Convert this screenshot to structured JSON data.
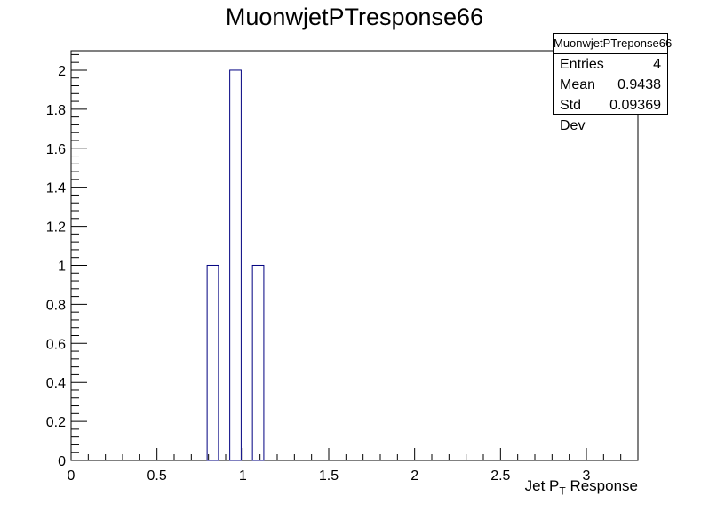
{
  "chart_data": {
    "type": "bar",
    "title": "MuonwjetPTresponse66",
    "xlabel": "Jet P",
    "xlabel_sub": "T",
    "xlabel_suffix": " Response",
    "ylabel": "",
    "xlim": [
      0,
      3.3
    ],
    "ylim": [
      0,
      2.1
    ],
    "bins": [
      {
        "x_low": 0.792,
        "x_high": 0.858,
        "value": 1
      },
      {
        "x_low": 0.924,
        "x_high": 0.99,
        "value": 2
      },
      {
        "x_low": 1.056,
        "x_high": 1.122,
        "value": 1
      }
    ],
    "x_tick_labels": [
      "0",
      "0.5",
      "1",
      "1.5",
      "2",
      "2.5",
      "3"
    ],
    "y_tick_labels": [
      "0",
      "0.2",
      "0.4",
      "0.6",
      "0.8",
      "1",
      "1.2",
      "1.4",
      "1.6",
      "1.8",
      "2"
    ],
    "bar_color": "#000080",
    "grid": false,
    "legend_position": "top-right"
  },
  "stats_box": {
    "name": "MuonwjetPTreponse66",
    "rows": [
      {
        "label": "Entries",
        "value": "4"
      },
      {
        "label": "Mean",
        "value": "0.9438"
      },
      {
        "label": "Std Dev",
        "value": "0.09369"
      }
    ]
  }
}
